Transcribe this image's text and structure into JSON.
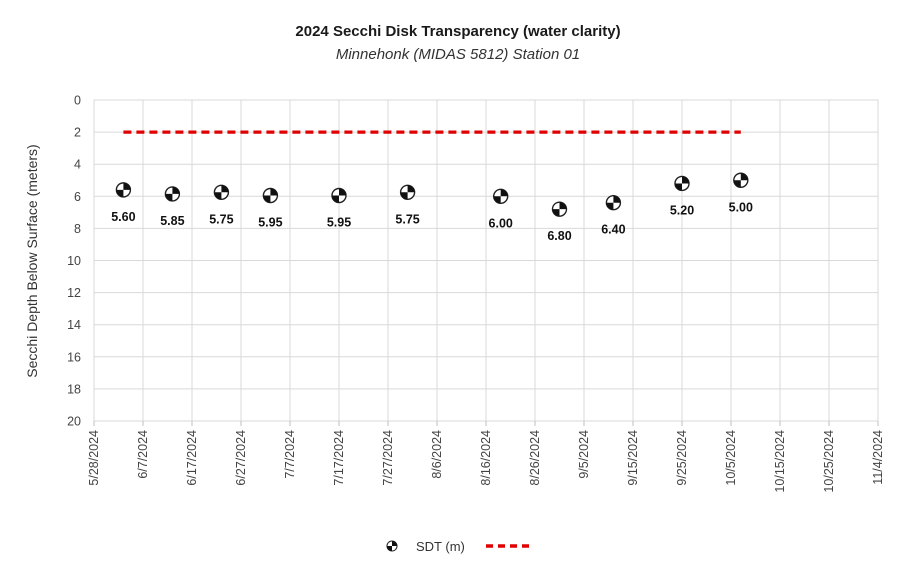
{
  "chart_data": {
    "type": "scatter",
    "title": "2024 Secchi Disk Transparency (water clarity)",
    "subtitle": "Minnehonk (MIDAS 5812) Station 01",
    "ylabel": "Secchi Depth Below Surface (meters)",
    "ylim": [
      0,
      20
    ],
    "y_inverted": true,
    "yticks": [
      0,
      2,
      4,
      6,
      8,
      10,
      12,
      14,
      16,
      18,
      20
    ],
    "xlim": [
      "5/28/2024",
      "11/4/2024"
    ],
    "xticks": [
      "5/28/2024",
      "6/7/2024",
      "6/17/2024",
      "6/27/2024",
      "7/7/2024",
      "7/17/2024",
      "7/27/2024",
      "8/6/2024",
      "8/16/2024",
      "8/26/2024",
      "9/5/2024",
      "9/15/2024",
      "9/25/2024",
      "10/5/2024",
      "10/15/2024",
      "10/25/2024",
      "11/4/2024"
    ],
    "grid": true,
    "legend_position": "bottom",
    "series": [
      {
        "name": "SDT (m)",
        "type": "scatter",
        "marker": "secchi-disk",
        "points": [
          {
            "date": "6/3/2024",
            "y": 5.6,
            "label": "5.60"
          },
          {
            "date": "6/13/2024",
            "y": 5.85,
            "label": "5.85"
          },
          {
            "date": "6/23/2024",
            "y": 5.75,
            "label": "5.75"
          },
          {
            "date": "7/3/2024",
            "y": 5.95,
            "label": "5.95"
          },
          {
            "date": "7/17/2024",
            "y": 5.95,
            "label": "5.95"
          },
          {
            "date": "7/31/2024",
            "y": 5.75,
            "label": "5.75"
          },
          {
            "date": "8/19/2024",
            "y": 6.0,
            "label": "6.00"
          },
          {
            "date": "8/31/2024",
            "y": 6.8,
            "label": "6.80"
          },
          {
            "date": "9/11/2024",
            "y": 6.4,
            "label": "6.40"
          },
          {
            "date": "9/25/2024",
            "y": 5.2,
            "label": "5.20"
          },
          {
            "date": "10/7/2024",
            "y": 5.0,
            "label": "5.00"
          }
        ]
      },
      {
        "type": "line",
        "style": "dashed",
        "color": "#e00000",
        "points": [
          {
            "date": "6/3/2024",
            "y": 2
          },
          {
            "date": "10/7/2024",
            "y": 2
          }
        ]
      }
    ]
  },
  "legend": {
    "items": [
      {
        "label": "SDT (m)",
        "icon": "secchi-disk-icon"
      },
      {
        "label": "",
        "icon": "red-dashed-line-icon",
        "color": "#e00000"
      }
    ]
  }
}
